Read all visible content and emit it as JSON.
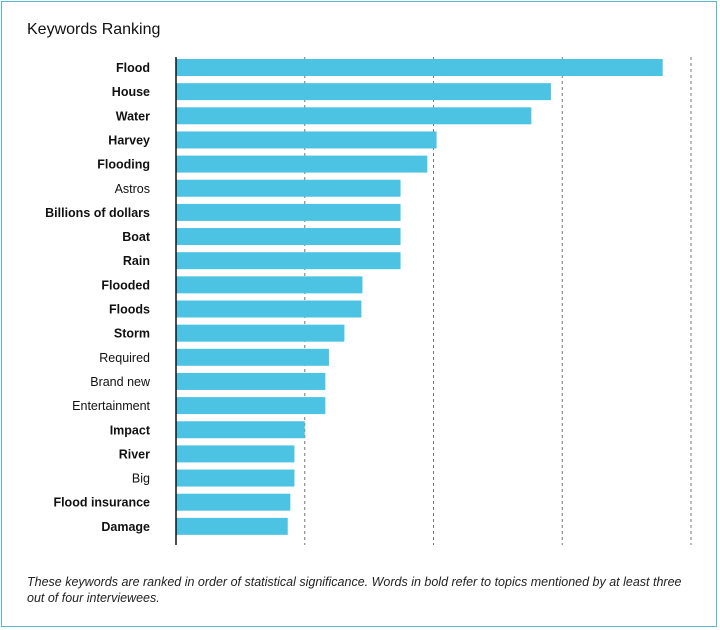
{
  "chart_data": {
    "type": "bar",
    "orientation": "horizontal",
    "title": "Keywords Ranking",
    "xlabel": "",
    "ylabel": "",
    "xlim": [
      0,
      1
    ],
    "grid": "vertical dashed",
    "bar_color": "#4dc3e3",
    "categories": [
      "Flood",
      "House",
      "Water",
      "Harvey",
      "Flooding",
      "Astros",
      "Billions of dollars",
      "Boat",
      "Rain",
      "Flooded",
      "Floods",
      "Storm",
      "Required",
      "Brand new",
      "Entertainment",
      "Impact",
      "River",
      "Big",
      "Flood insurance",
      "Damage"
    ],
    "bold": [
      true,
      true,
      true,
      true,
      true,
      false,
      true,
      true,
      true,
      true,
      true,
      true,
      false,
      false,
      false,
      true,
      true,
      false,
      true,
      true
    ],
    "values": [
      0.945,
      0.728,
      0.69,
      0.506,
      0.488,
      0.436,
      0.436,
      0.436,
      0.436,
      0.362,
      0.36,
      0.327,
      0.297,
      0.29,
      0.29,
      0.25,
      0.23,
      0.23,
      0.222,
      0.217
    ]
  },
  "caption": "These keywords are ranked in order of statistical significance. Words in bold refer to topics mentioned by at least three out of four interviewees."
}
